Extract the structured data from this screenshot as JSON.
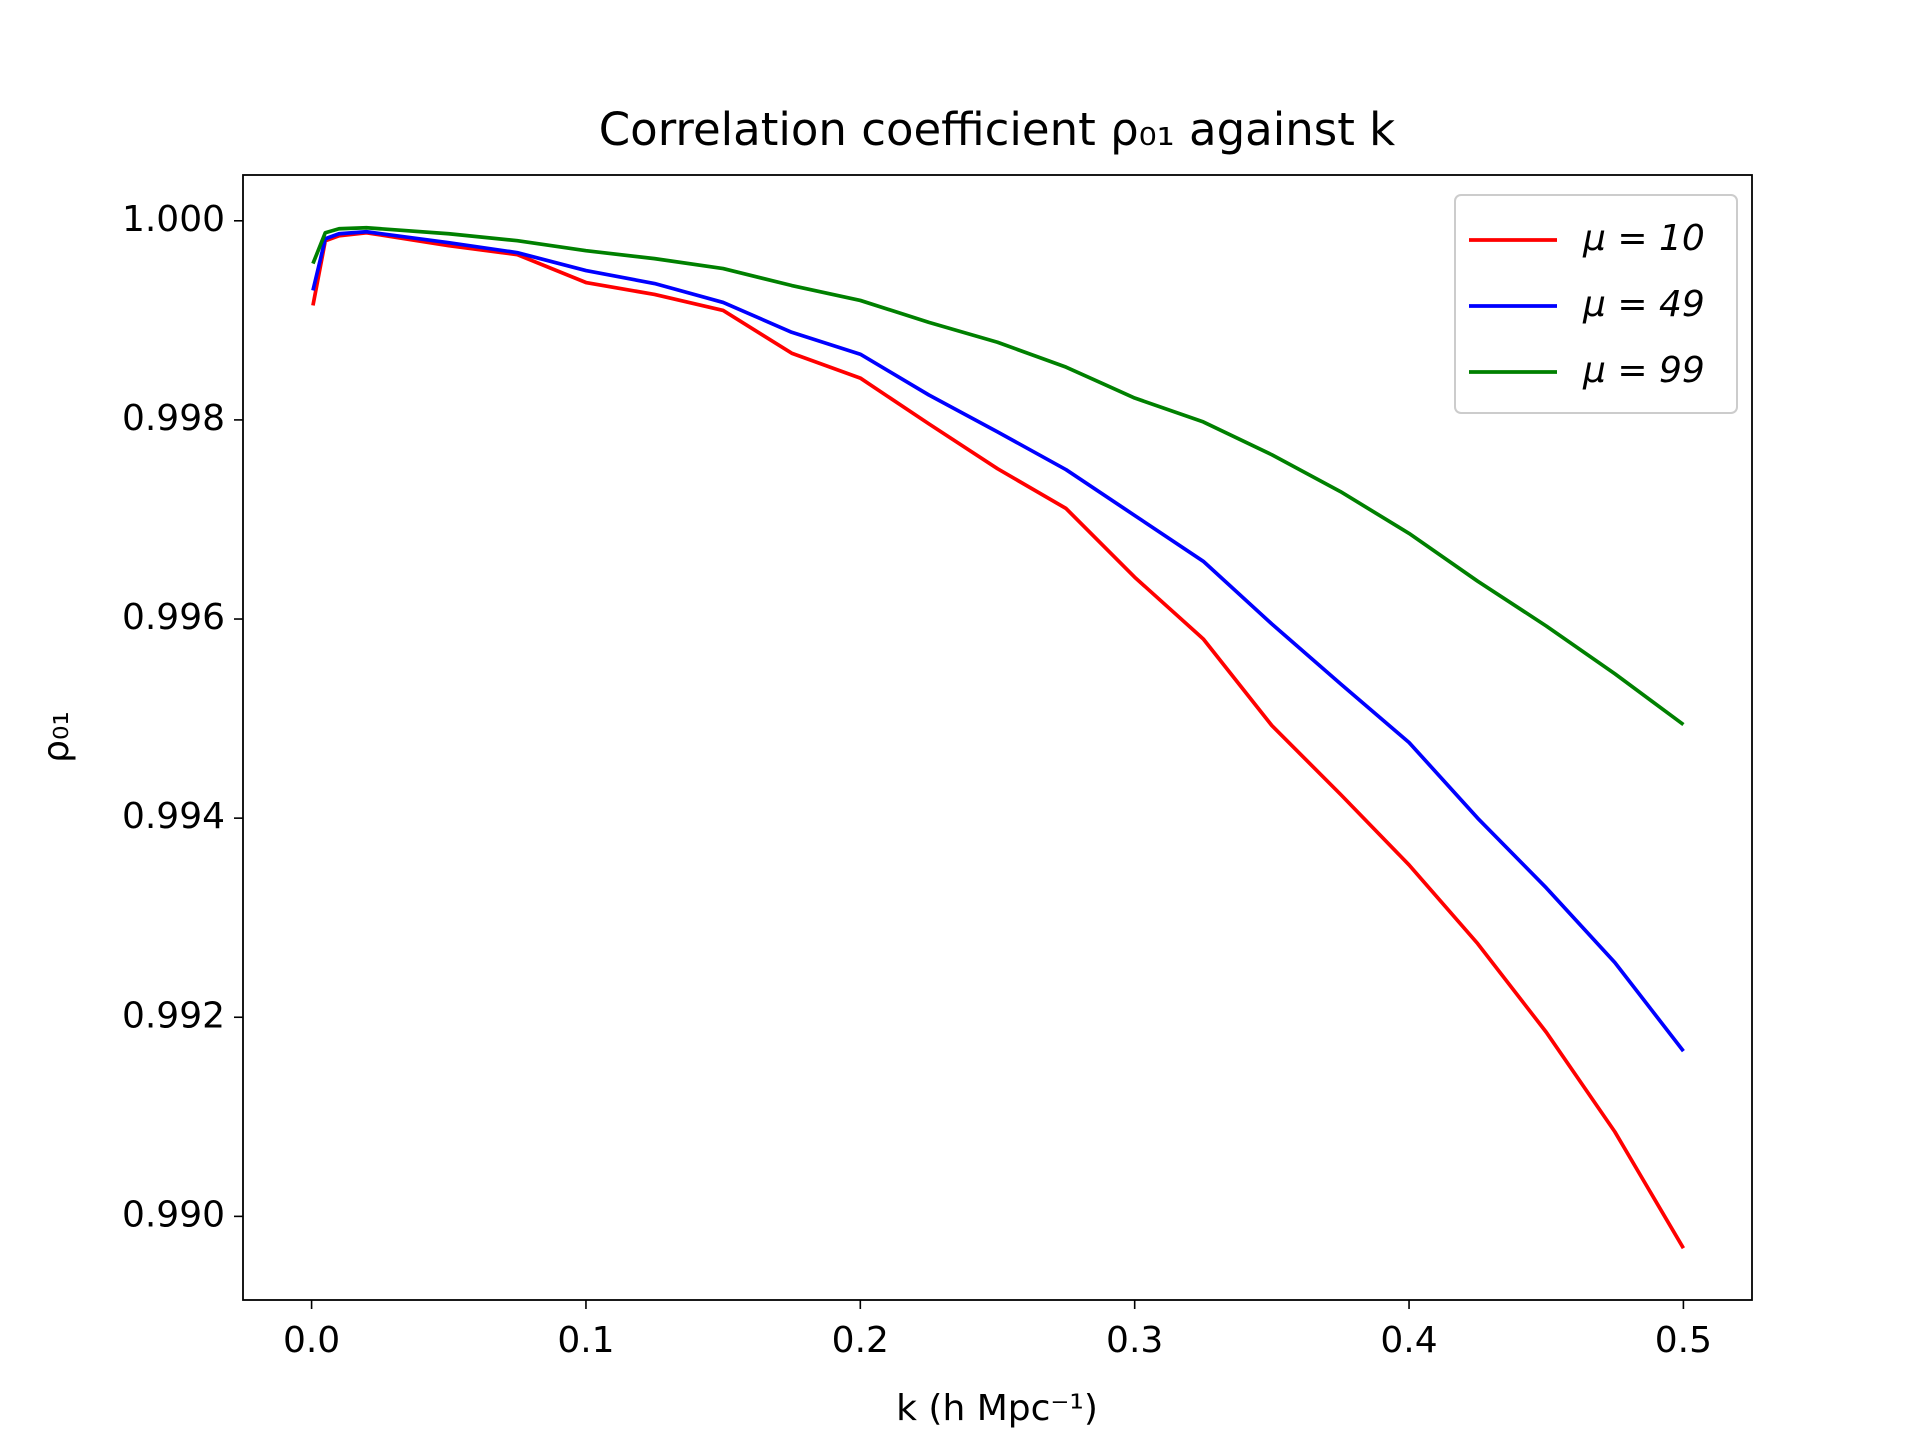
{
  "chart_data": {
    "type": "line",
    "title": "Correlation coefficient ρ₀₁ against k",
    "xlabel": "k (h Mpc⁻¹)",
    "ylabel": "ρ₀₁",
    "x": [
      0.0005,
      0.005,
      0.01,
      0.02,
      0.05,
      0.075,
      0.1,
      0.125,
      0.15,
      0.175,
      0.2,
      0.225,
      0.25,
      0.275,
      0.3,
      0.325,
      0.35,
      0.375,
      0.4,
      0.425,
      0.45,
      0.475,
      0.5
    ],
    "series": [
      {
        "name": "μ = 10",
        "color": "#ff0000",
        "values": [
          0.99915,
          0.9998,
          0.99985,
          0.99988,
          0.99975,
          0.99966,
          0.99938,
          0.99926,
          0.9991,
          0.99867,
          0.99842,
          0.99796,
          0.99751,
          0.99711,
          0.99642,
          0.9958,
          0.99493,
          0.99424,
          0.99353,
          0.99274,
          0.99185,
          0.99085,
          0.98968
        ]
      },
      {
        "name": "μ = 49",
        "color": "#0000ff",
        "values": [
          0.9993,
          0.99982,
          0.99987,
          0.99989,
          0.99978,
          0.99968,
          0.9995,
          0.99937,
          0.99918,
          0.99888,
          0.99866,
          0.99825,
          0.99788,
          0.9975,
          0.99704,
          0.99658,
          0.99595,
          0.99535,
          0.99476,
          0.994,
          0.9933,
          0.99255,
          0.99166
        ]
      },
      {
        "name": "μ = 99",
        "color": "#008000",
        "values": [
          0.99957,
          0.99988,
          0.99992,
          0.99993,
          0.99987,
          0.9998,
          0.9997,
          0.99962,
          0.99952,
          0.99935,
          0.9992,
          0.99898,
          0.99878,
          0.99853,
          0.99822,
          0.99798,
          0.99765,
          0.99728,
          0.99686,
          0.99638,
          0.99593,
          0.99545,
          0.99494
        ]
      }
    ],
    "xlim": [
      -0.025,
      0.525
    ],
    "ylim": [
      0.98916,
      1.00046
    ],
    "xticks": [
      {
        "value": 0,
        "label": "0.0"
      },
      0.1,
      0.2,
      0.3,
      0.4,
      0.5
    ],
    "yticks": [
      {
        "value": 0.99,
        "label": "0.990"
      },
      0.992,
      0.994,
      0.996,
      0.998,
      {
        "value": 1,
        "label": "1.000"
      }
    ],
    "legend": "upper right",
    "grid": false
  }
}
